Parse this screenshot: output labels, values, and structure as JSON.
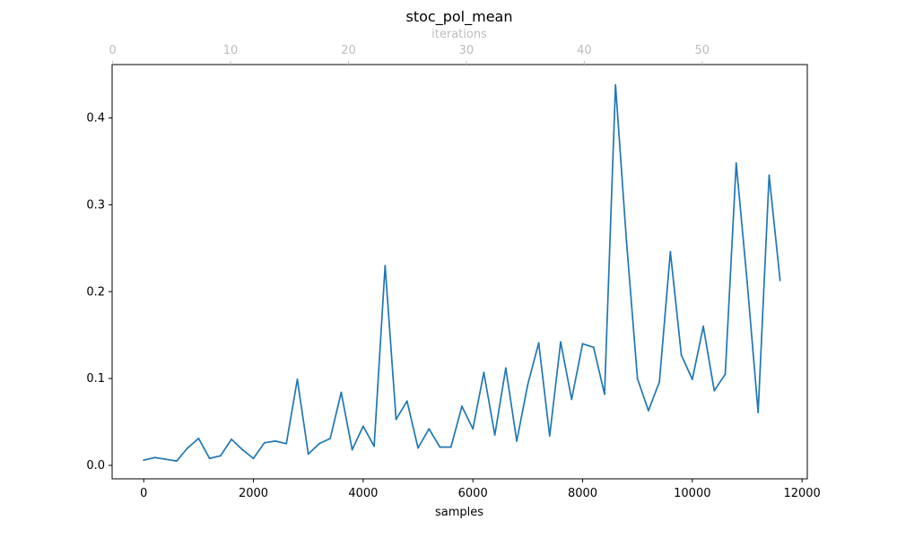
{
  "chart_data": {
    "type": "line",
    "title": "stoc_pol_mean",
    "xlabel": "samples",
    "ylabel": "",
    "x2label": "iterations",
    "xlim": [
      -576,
      12096
    ],
    "ylim": [
      -0.0155,
      0.4615
    ],
    "x2lim": [
      -0.0455,
      58.9181
    ],
    "xticks": [
      0,
      2000,
      4000,
      6000,
      8000,
      10000,
      12000
    ],
    "xtick_labels": [
      "0",
      "2000",
      "4000",
      "6000",
      "8000",
      "10000",
      "12000"
    ],
    "x2ticks": [
      0,
      10,
      20,
      30,
      40,
      50
    ],
    "x2tick_labels": [
      "0",
      "10",
      "20",
      "30",
      "40",
      "50"
    ],
    "yticks": [
      0.0,
      0.1,
      0.2,
      0.3,
      0.4
    ],
    "ytick_labels": [
      "0.0",
      "0.1",
      "0.2",
      "0.3",
      "0.4"
    ],
    "grid": false,
    "legend": false,
    "colors": {
      "series": "#1f77b4",
      "axes": "#000000",
      "secondary_axis": "#bdbdbd"
    },
    "series": [
      {
        "x": [
          0,
          200,
          400,
          600,
          800,
          1000,
          1200,
          1400,
          1600,
          1800,
          2000,
          2200,
          2400,
          2600,
          2800,
          3000,
          3200,
          3400,
          3600,
          3800,
          4000,
          4200,
          4400,
          4600,
          4800,
          5000,
          5200,
          5400,
          5600,
          5800,
          6000,
          6200,
          6400,
          6600,
          6800,
          7000,
          7200,
          7400,
          7600,
          7800,
          8000,
          8200,
          8400,
          8600,
          8800,
          9000,
          9200,
          9400,
          9600,
          9800,
          10000,
          10200,
          10400,
          10600,
          10800,
          11000,
          11200,
          11400,
          11600
        ],
        "values": [
          0.006,
          0.009,
          0.007,
          0.005,
          0.02,
          0.031,
          0.008,
          0.011,
          0.03,
          0.018,
          0.008,
          0.026,
          0.028,
          0.025,
          0.099,
          0.013,
          0.025,
          0.031,
          0.084,
          0.018,
          0.045,
          0.022,
          0.23,
          0.053,
          0.074,
          0.02,
          0.042,
          0.021,
          0.021,
          0.068,
          0.042,
          0.107,
          0.035,
          0.112,
          0.028,
          0.093,
          0.141,
          0.034,
          0.142,
          0.076,
          0.14,
          0.136,
          0.082,
          0.438,
          0.258,
          0.1,
          0.063,
          0.096,
          0.246,
          0.127,
          0.099,
          0.16,
          0.086,
          0.105,
          0.348,
          0.211,
          0.061,
          0.334,
          0.213
        ]
      }
    ]
  }
}
